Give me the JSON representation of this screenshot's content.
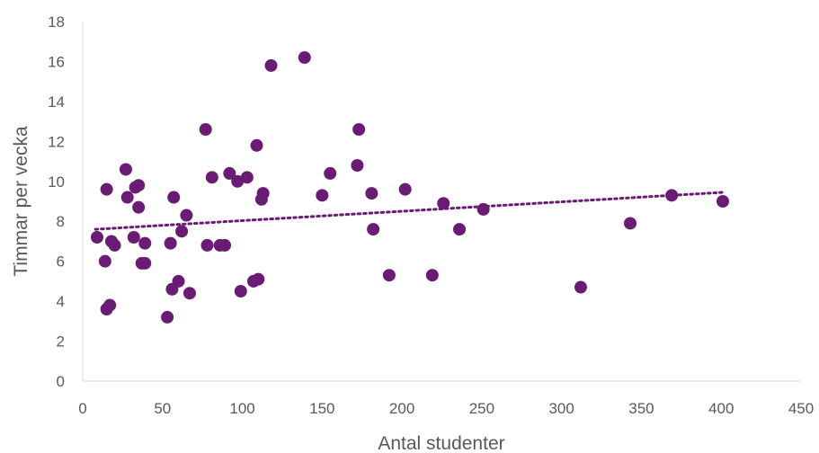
{
  "chart_data": {
    "type": "scatter",
    "title": "",
    "xlabel": "Antal studenter",
    "ylabel": "Timmar per vecka",
    "xlim": [
      0,
      450
    ],
    "ylim": [
      0,
      18
    ],
    "x_ticks": [
      0,
      50,
      100,
      150,
      200,
      250,
      300,
      350,
      400,
      450
    ],
    "y_ticks": [
      0,
      2,
      4,
      6,
      8,
      10,
      12,
      14,
      16,
      18
    ],
    "grid": false,
    "legend": "none",
    "series": [
      {
        "color": "#6a1b73",
        "points": [
          [
            9,
            7.2
          ],
          [
            14,
            6.0
          ],
          [
            15,
            9.6
          ],
          [
            15,
            3.6
          ],
          [
            17,
            3.8
          ],
          [
            18,
            7.0
          ],
          [
            20,
            6.8
          ],
          [
            27,
            10.6
          ],
          [
            28,
            9.2
          ],
          [
            32,
            7.2
          ],
          [
            33,
            9.7
          ],
          [
            35,
            9.8
          ],
          [
            35,
            8.7
          ],
          [
            37,
            5.9
          ],
          [
            39,
            5.9
          ],
          [
            39,
            6.9
          ],
          [
            53,
            3.2
          ],
          [
            55,
            6.9
          ],
          [
            56,
            4.6
          ],
          [
            57,
            9.2
          ],
          [
            60,
            5.0
          ],
          [
            62,
            7.5
          ],
          [
            65,
            8.3
          ],
          [
            67,
            4.4
          ],
          [
            77,
            12.6
          ],
          [
            78,
            6.8
          ],
          [
            81,
            10.2
          ],
          [
            86,
            6.8
          ],
          [
            89,
            6.8
          ],
          [
            92,
            10.4
          ],
          [
            97,
            10.0
          ],
          [
            99,
            4.5
          ],
          [
            103,
            10.2
          ],
          [
            107,
            5.0
          ],
          [
            109,
            11.8
          ],
          [
            110,
            5.1
          ],
          [
            112,
            9.1
          ],
          [
            113,
            9.4
          ],
          [
            118,
            15.8
          ],
          [
            139,
            16.2
          ],
          [
            150,
            9.3
          ],
          [
            155,
            10.4
          ],
          [
            172,
            10.8
          ],
          [
            173,
            12.6
          ],
          [
            181,
            9.4
          ],
          [
            182,
            7.6
          ],
          [
            192,
            5.3
          ],
          [
            202,
            9.6
          ],
          [
            219,
            5.3
          ],
          [
            226,
            8.9
          ],
          [
            236,
            7.6
          ],
          [
            251,
            8.6
          ],
          [
            312,
            4.7
          ],
          [
            343,
            7.9
          ],
          [
            369,
            9.3
          ],
          [
            401,
            9.0
          ]
        ]
      }
    ],
    "trendline": {
      "type": "linear",
      "style": "dotted",
      "color": "#6a1b73",
      "x_range": [
        8,
        401
      ],
      "y_range": [
        7.6,
        9.45
      ]
    }
  }
}
